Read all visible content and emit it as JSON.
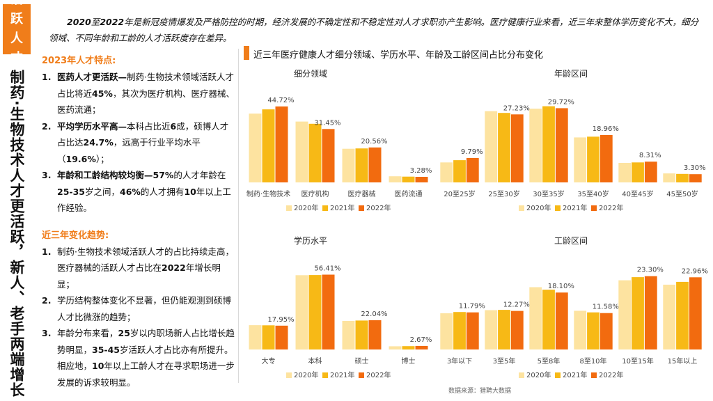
{
  "side_tag": "活跃人才",
  "side_title": "制药·生物技术人才更活跃，新人、老手两端增长",
  "intro": {
    "lead_bold_1": "2020",
    "lead_mid": "至",
    "lead_bold_2": "2022",
    "rest": "年是新冠疫情爆发及严格防控的时期，经济发展的不确定性和不稳定性对人才求职亦产生影响。医疗健康行业来看，近三年来整体学历变化不大，细分领域、不同年龄和工龄的人才活跃度存在差异。"
  },
  "features": {
    "title": "2023年人才特点:",
    "items": [
      {
        "num": "1.",
        "segments": [
          {
            "t": "医药人才更活跃—",
            "b": true
          },
          {
            "t": "制药·生物技术领域活跃人才占比将近",
            "b": false
          },
          {
            "t": "45%",
            "b": true
          },
          {
            "t": "，其次为医疗机构、医疗器械、医药流通；",
            "b": false
          }
        ]
      },
      {
        "num": "2.",
        "segments": [
          {
            "t": "平均学历水平高—",
            "b": true
          },
          {
            "t": "本科占比近",
            "b": false
          },
          {
            "t": "6",
            "b": true
          },
          {
            "t": "成，硕博人才占比达",
            "b": false
          },
          {
            "t": "24.7%",
            "b": true
          },
          {
            "t": "，远高于行业平均水平（",
            "b": false
          },
          {
            "t": "19.6%",
            "b": true
          },
          {
            "t": "）；",
            "b": false
          }
        ]
      },
      {
        "num": "3.",
        "segments": [
          {
            "t": "年龄和工龄结构较均衡—57%",
            "b": true
          },
          {
            "t": "的人才年龄在",
            "b": false
          },
          {
            "t": "25-35",
            "b": true
          },
          {
            "t": "岁之间，",
            "b": false
          },
          {
            "t": "46%",
            "b": true
          },
          {
            "t": "的人才拥有",
            "b": false
          },
          {
            "t": "10",
            "b": true
          },
          {
            "t": "年以上工作经验。",
            "b": false
          }
        ]
      }
    ]
  },
  "trends": {
    "title": "近三年变化趋势:",
    "items": [
      {
        "num": "1.",
        "segments": [
          {
            "t": "制药·生物技术领域活跃人才的占比持续走高，医疗器械的活跃人才占比在",
            "b": false
          },
          {
            "t": "2022",
            "b": true
          },
          {
            "t": "年增长明显；",
            "b": false
          }
        ]
      },
      {
        "num": "2.",
        "segments": [
          {
            "t": "学历结构整体变化不显著，但仍能观测到硕博人才比微涨的趋势；",
            "b": false
          }
        ]
      },
      {
        "num": "3.",
        "segments": [
          {
            "t": "年龄分布来看，",
            "b": false
          },
          {
            "t": "25",
            "b": true
          },
          {
            "t": "岁以内职场新人占比增长趋势明显，",
            "b": false
          },
          {
            "t": "35-45",
            "b": true
          },
          {
            "t": "岁活跃人才占比亦有所提升。相应地，",
            "b": false
          },
          {
            "t": "10",
            "b": true
          },
          {
            "t": "年以上工龄人才在寻求职场进一步发展的诉求较明显。",
            "b": false
          }
        ]
      }
    ]
  },
  "charts_title": "近三年医疗健康人才细分领域、学历水平、年龄及工龄区间占比分布变化",
  "source": "数据来源：猎聘大数据",
  "colors": {
    "accent": "#f07d1a",
    "s2020": "#fde3a0",
    "s2021": "#f7b916",
    "s2022": "#f26b0f"
  },
  "chart_data": [
    {
      "type": "bar",
      "title": "细分领域",
      "categories": [
        "制药·生物技术",
        "医疗机构",
        "医疗器械",
        "医药流通"
      ],
      "series": [
        {
          "name": "2020年",
          "values": [
            40.5,
            35.8,
            19.8,
            3.6
          ]
        },
        {
          "name": "2021年",
          "values": [
            43.0,
            34.5,
            20.0,
            3.4
          ]
        },
        {
          "name": "2022年",
          "values": [
            44.72,
            31.45,
            20.56,
            3.28
          ]
        }
      ],
      "data_labels": [
        "44.72%",
        "31.45%",
        "20.56%",
        "3.28%"
      ],
      "ylim": [
        0,
        50
      ]
    },
    {
      "type": "bar",
      "title": "年龄区间",
      "categories": [
        "20至25岁",
        "25至30岁",
        "30至35岁",
        "35至40岁",
        "40至45岁",
        "45至50岁"
      ],
      "series": [
        {
          "name": "2020年",
          "values": [
            8.0,
            28.5,
            29.5,
            18.0,
            7.8,
            3.6
          ]
        },
        {
          "name": "2021年",
          "values": [
            8.9,
            27.8,
            30.5,
            18.3,
            8.0,
            3.4
          ]
        },
        {
          "name": "2022年",
          "values": [
            9.79,
            27.23,
            29.72,
            18.96,
            8.31,
            3.3
          ]
        }
      ],
      "data_labels": [
        "9.79%",
        "27.23%",
        "29.72%",
        "18.96%",
        "8.31%",
        "3.30%"
      ],
      "ylim": [
        0,
        34
      ]
    },
    {
      "type": "bar",
      "title": "学历水平",
      "categories": [
        "大专",
        "本科",
        "硕士",
        "博士"
      ],
      "series": [
        {
          "name": "2020年",
          "values": [
            18.3,
            56.0,
            21.5,
            2.4
          ]
        },
        {
          "name": "2021年",
          "values": [
            18.2,
            56.1,
            21.8,
            2.5
          ]
        },
        {
          "name": "2022年",
          "values": [
            17.95,
            56.41,
            22.04,
            2.67
          ]
        }
      ],
      "data_labels": [
        "17.95%",
        "56.41%",
        "22.04%",
        "2.67%"
      ],
      "ylim": [
        0,
        64
      ]
    },
    {
      "type": "bar",
      "title": "工龄区间",
      "categories": [
        "3年以下",
        "3至5年",
        "5至8年",
        "8至10年",
        "10至15年",
        "15年以上"
      ],
      "series": [
        {
          "name": "2020年",
          "values": [
            11.5,
            12.5,
            19.8,
            12.3,
            22.0,
            20.6
          ]
        },
        {
          "name": "2021年",
          "values": [
            11.9,
            12.6,
            19.0,
            11.8,
            23.0,
            21.5
          ]
        },
        {
          "name": "2022年",
          "values": [
            11.79,
            12.27,
            18.1,
            11.58,
            23.3,
            22.96
          ]
        }
      ],
      "data_labels": [
        "11.79%",
        "12.27%",
        "18.10%",
        "11.58%",
        "23.30%",
        "22.96%"
      ],
      "ylim": [
        0,
        27
      ]
    }
  ]
}
